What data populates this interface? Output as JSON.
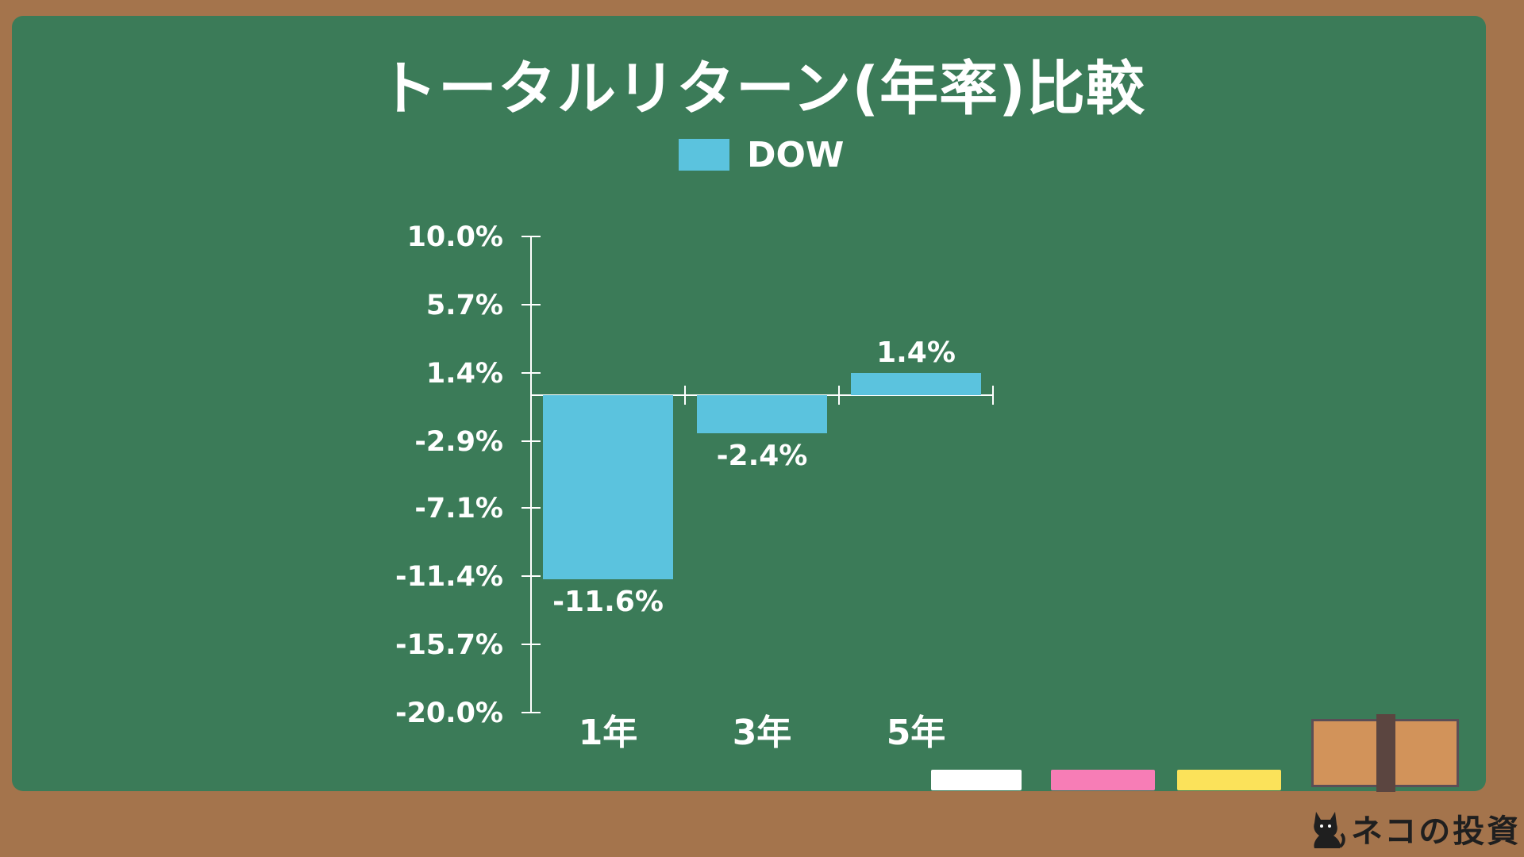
{
  "title": "トータルリターン(年率)比較",
  "legend": {
    "label": "DOW",
    "color": "#5bc3de"
  },
  "brand": {
    "name": "ネコの投資",
    "icon": "cat-icon"
  },
  "colors": {
    "board": "#3b7b58",
    "frame": "#a4744c",
    "bar": "#5bc3de",
    "chalk_white": "#ffffff",
    "chalk_pink": "#f77db6",
    "chalk_yellow": "#fbe25a",
    "eraser": "#d2935a"
  },
  "chart_data": {
    "type": "bar",
    "title": "トータルリターン(年率)比較",
    "categories": [
      "1年",
      "3年",
      "5年"
    ],
    "series": [
      {
        "name": "DOW",
        "values": [
          -11.6,
          -2.4,
          1.4
        ],
        "labels": [
          "-11.6%",
          "-2.4%",
          "1.4%"
        ]
      }
    ],
    "ylim": [
      -20.0,
      10.0
    ],
    "yticks": [
      10.0,
      5.7,
      1.4,
      -2.9,
      -7.1,
      -11.4,
      -15.7,
      -20.0
    ],
    "ytick_labels": [
      "10.0%",
      "5.7%",
      "1.4%",
      "-2.9%",
      "-7.1%",
      "-11.4%",
      "-15.7%",
      "-20.0%"
    ],
    "xlabel": "",
    "ylabel": "",
    "grid": false,
    "legend_position": "top-center"
  }
}
